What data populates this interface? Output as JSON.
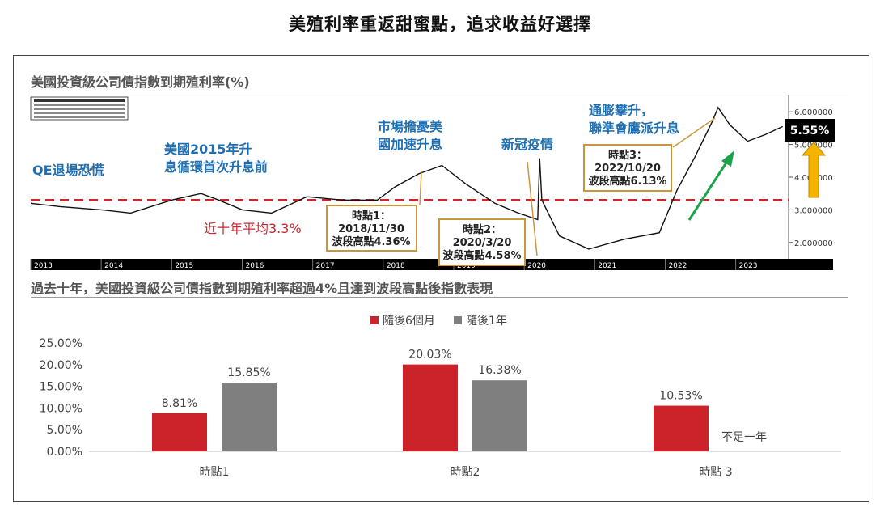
{
  "title": "美殖利率重返甜蜜點，追求收益好選擇",
  "chart_data": [
    {
      "type": "line",
      "title": "美國投資級公司債指數到期殖利率(%)",
      "series": [
        {
          "x": [
            "2013/1",
            "2013/6",
            "2014/1",
            "2014/6",
            "2015/1",
            "2015/6",
            "2015/9",
            "2016/1",
            "2016/6",
            "2016/12",
            "2017/6",
            "2017/12",
            "2018/3",
            "2018/7",
            "2018/11",
            "2019/3",
            "2019/8",
            "2019/12",
            "2020/3/10",
            "2020/3/20",
            "2020/4",
            "2020/7",
            "2020/12",
            "2021/6",
            "2021/12",
            "2022/3",
            "2022/6",
            "2022/9",
            "2022/10",
            "2022/12",
            "2023/3",
            "2023/6",
            "2023/9"
          ],
          "values": [
            3.2,
            3.1,
            3.0,
            2.9,
            3.3,
            3.5,
            3.3,
            3.0,
            2.9,
            3.4,
            3.3,
            3.3,
            3.7,
            4.1,
            4.36,
            3.8,
            3.2,
            2.9,
            2.7,
            4.58,
            3.3,
            2.2,
            1.8,
            2.1,
            2.3,
            3.6,
            4.6,
            5.7,
            6.13,
            5.6,
            5.1,
            5.3,
            5.55
          ]
        }
      ],
      "ylim": [
        1.5,
        6.5
      ],
      "yticks": [
        "6.000000",
        "5.000000",
        "4.000000",
        "3.000000",
        "2.000000"
      ],
      "xticks": [
        "2013",
        "2014",
        "2015",
        "2016",
        "2017",
        "2018",
        "2019",
        "2020",
        "2021",
        "2022",
        "2023"
      ],
      "average": {
        "value": 3.3,
        "label": "近十年平均3.3%"
      },
      "last_value_label": "5.55%",
      "annotations": [
        {
          "text": "QE退場恐慌"
        },
        {
          "text": "美國2015年升息循環首次升息前"
        },
        {
          "text": "市場擔憂美國加速升息"
        },
        {
          "text": "新冠疫情"
        },
        {
          "text": "通膨攀升，聯準會鷹派升息"
        }
      ],
      "callouts": [
        {
          "label": "時點1：",
          "date": "2018/11/30",
          "value": "波段高點4.36%"
        },
        {
          "label": "時點2：",
          "date": "2020/3/20",
          "value": "波段高點4.58%"
        },
        {
          "label": "時點3：",
          "date": "2022/10/20",
          "value": "波段高點6.13%"
        }
      ]
    },
    {
      "type": "bar",
      "title": "過去十年，美國投資級公司債指數到期殖利率超過4%且達到波段高點後指數表現",
      "categories": [
        "時點1",
        "時點2",
        "時點 3"
      ],
      "series": [
        {
          "name": "隨後6個月",
          "values": [
            8.81,
            20.03,
            10.53
          ],
          "labels": [
            "8.81%",
            "20.03%",
            "10.53%"
          ],
          "color": "#cc2229"
        },
        {
          "name": "隨後1年",
          "values": [
            15.85,
            16.38,
            null
          ],
          "labels": [
            "15.85%",
            "16.38%",
            ""
          ],
          "color": "#7f7f7f"
        }
      ],
      "ylim": [
        0,
        25
      ],
      "yticks": [
        "0.00%",
        "5.00%",
        "10.00%",
        "15.00%",
        "20.00%",
        "25.00%"
      ],
      "missing_note": "不足一年"
    }
  ]
}
